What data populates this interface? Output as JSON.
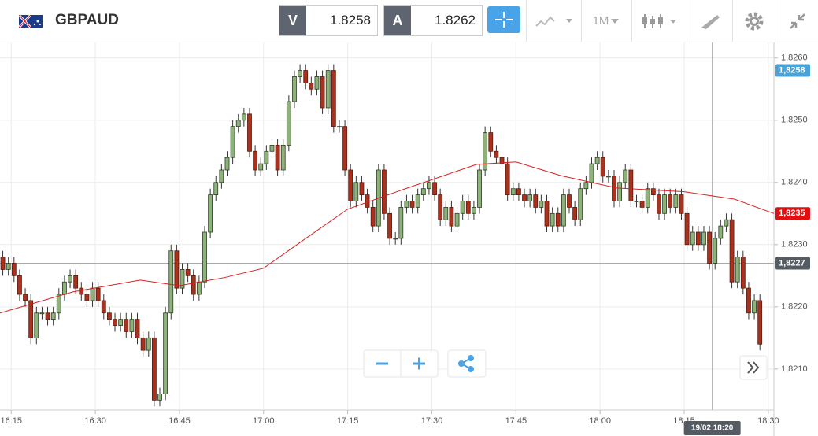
{
  "header": {
    "symbol": "GBPAUD",
    "bid": {
      "label": "V",
      "value": "1.8258"
    },
    "ask": {
      "label": "A",
      "value": "1.8262"
    },
    "timeframe": "1M"
  },
  "chart_data": {
    "type": "candlestick",
    "open": [
      1.8228,
      1.8226,
      1.8227,
      1.8225,
      1.8222,
      1.8221,
      1.8215,
      1.8219,
      1.8219,
      1.8218,
      1.8219,
      1.8222,
      1.8224,
      1.8225,
      1.8223,
      1.8222,
      1.8221,
      1.8223,
      1.8221,
      1.8219,
      1.8218,
      1.8217,
      1.8218,
      1.8216,
      1.8218,
      1.8215,
      1.8213,
      1.8215,
      1.8205,
      1.8206,
      1.8219,
      1.8229,
      1.8223,
      1.8226,
      1.8225,
      1.8222,
      1.8224,
      1.8232,
      1.8238,
      1.824,
      1.8242,
      1.8244,
      1.8249,
      1.825,
      1.8251,
      1.8245,
      1.8242,
      1.8243,
      1.8245,
      1.8246,
      1.8242,
      1.8246,
      1.8253,
      1.8257,
      1.8258,
      1.8256,
      1.8255,
      1.8257,
      1.8252,
      1.8258,
      1.8249,
      1.8249,
      1.8242,
      1.8237,
      1.824,
      1.8238,
      1.8236,
      1.8233,
      1.8242,
      1.8235,
      1.8231,
      1.8231,
      1.8236,
      1.8237,
      1.8236,
      1.8238,
      1.8239,
      1.824,
      1.8238,
      1.8234,
      1.8236,
      1.8233,
      1.8235,
      1.8237,
      1.8235,
      1.8236,
      1.8242,
      1.8248,
      1.8245,
      1.8244,
      1.8243,
      1.8238,
      1.8239,
      1.8238,
      1.8237,
      1.8238,
      1.8236,
      1.8237,
      1.8233,
      1.8235,
      1.8233,
      1.8238,
      1.8236,
      1.8234,
      1.8239,
      1.824,
      1.8243,
      1.8244,
      1.8241,
      1.8241,
      1.8237,
      1.824,
      1.8242,
      1.8237,
      1.8237,
      1.8236,
      1.8239,
      1.8238,
      1.8235,
      1.8238,
      1.8236,
      1.8238,
      1.8235,
      1.823,
      1.8232,
      1.823,
      1.8232,
      1.8227,
      1.8231,
      1.8233,
      1.8234,
      1.8224,
      1.8228,
      1.8223,
      1.8219,
      1.8221
    ],
    "high": [
      1.8229,
      1.8228,
      1.8228,
      1.8226,
      1.8223,
      1.8222,
      1.822,
      1.822,
      1.822,
      1.822,
      1.8223,
      1.8225,
      1.8226,
      1.8226,
      1.8224,
      1.8223,
      1.8224,
      1.8224,
      1.8222,
      1.822,
      1.8219,
      1.8219,
      1.8219,
      1.8219,
      1.8219,
      1.8216,
      1.8216,
      1.8216,
      1.8207,
      1.822,
      1.823,
      1.823,
      1.8227,
      1.8227,
      1.8226,
      1.8225,
      1.8233,
      1.8239,
      1.8241,
      1.8243,
      1.8245,
      1.825,
      1.8251,
      1.8252,
      1.8252,
      1.8246,
      1.8244,
      1.8246,
      1.8247,
      1.8247,
      1.8247,
      1.8254,
      1.8258,
      1.8259,
      1.8259,
      1.8257,
      1.8258,
      1.8258,
      1.8259,
      1.8259,
      1.825,
      1.825,
      1.8243,
      1.8241,
      1.8241,
      1.8239,
      1.8237,
      1.8243,
      1.8243,
      1.8236,
      1.8232,
      1.8237,
      1.8238,
      1.8238,
      1.8239,
      1.824,
      1.8241,
      1.8241,
      1.8239,
      1.8237,
      1.8237,
      1.8236,
      1.8238,
      1.8238,
      1.8237,
      1.8243,
      1.8249,
      1.8249,
      1.8246,
      1.8245,
      1.8244,
      1.824,
      1.824,
      1.8239,
      1.8239,
      1.8239,
      1.8238,
      1.8238,
      1.8236,
      1.8236,
      1.8239,
      1.8239,
      1.8237,
      1.824,
      1.8241,
      1.8244,
      1.8245,
      1.8245,
      1.8242,
      1.8242,
      1.8241,
      1.8243,
      1.8243,
      1.8238,
      1.8238,
      1.824,
      1.824,
      1.8239,
      1.8239,
      1.8239,
      1.8239,
      1.8239,
      1.8236,
      1.8233,
      1.8233,
      1.8233,
      1.8233,
      1.8232,
      1.8234,
      1.8235,
      1.8235,
      1.8229,
      1.8229,
      1.8224,
      1.8222,
      1.8222
    ],
    "low": [
      1.8225,
      1.8225,
      1.8224,
      1.8221,
      1.822,
      1.8214,
      1.8214,
      1.8218,
      1.8217,
      1.8217,
      1.8218,
      1.8221,
      1.8223,
      1.8222,
      1.8221,
      1.822,
      1.822,
      1.822,
      1.8218,
      1.8217,
      1.8216,
      1.8216,
      1.8215,
      1.8215,
      1.8214,
      1.8212,
      1.8212,
      1.8204,
      1.8204,
      1.8205,
      1.8218,
      1.8222,
      1.8222,
      1.8224,
      1.8221,
      1.8221,
      1.8223,
      1.8231,
      1.8237,
      1.8239,
      1.8241,
      1.8243,
      1.8248,
      1.8249,
      1.8244,
      1.8241,
      1.8241,
      1.8242,
      1.8244,
      1.8241,
      1.8241,
      1.8245,
      1.8252,
      1.8256,
      1.8255,
      1.8254,
      1.8254,
      1.8251,
      1.8251,
      1.8248,
      1.8248,
      1.8241,
      1.8236,
      1.8236,
      1.8237,
      1.8235,
      1.8232,
      1.8232,
      1.8234,
      1.823,
      1.823,
      1.823,
      1.8235,
      1.8235,
      1.8235,
      1.8237,
      1.8238,
      1.8237,
      1.8233,
      1.8233,
      1.8232,
      1.8232,
      1.8234,
      1.8234,
      1.8234,
      1.8235,
      1.8241,
      1.8244,
      1.8243,
      1.8242,
      1.8237,
      1.8237,
      1.8237,
      1.8236,
      1.8236,
      1.8235,
      1.8235,
      1.8232,
      1.8232,
      1.8232,
      1.8232,
      1.8235,
      1.8233,
      1.8233,
      1.8238,
      1.8239,
      1.8242,
      1.824,
      1.824,
      1.8236,
      1.8236,
      1.8239,
      1.8236,
      1.8236,
      1.8235,
      1.8235,
      1.8237,
      1.8234,
      1.8234,
      1.8235,
      1.8235,
      1.8234,
      1.8229,
      1.8229,
      1.8229,
      1.8229,
      1.8226,
      1.8226,
      1.823,
      1.8232,
      1.8223,
      1.8223,
      1.8222,
      1.8218,
      1.8218,
      1.8213
    ],
    "close": [
      1.8226,
      1.8227,
      1.8225,
      1.8222,
      1.8221,
      1.8215,
      1.8219,
      1.8219,
      1.8218,
      1.8219,
      1.8222,
      1.8224,
      1.8225,
      1.8223,
      1.8222,
      1.8221,
      1.8223,
      1.8221,
      1.8219,
      1.8218,
      1.8217,
      1.8218,
      1.8216,
      1.8218,
      1.8215,
      1.8213,
      1.8215,
      1.8205,
      1.8206,
      1.8219,
      1.8229,
      1.8223,
      1.8226,
      1.8225,
      1.8222,
      1.8224,
      1.8232,
      1.8238,
      1.824,
      1.8242,
      1.8244,
      1.8249,
      1.825,
      1.8251,
      1.8245,
      1.8242,
      1.8243,
      1.8245,
      1.8246,
      1.8242,
      1.8246,
      1.8253,
      1.8257,
      1.8258,
      1.8256,
      1.8255,
      1.8257,
      1.8252,
      1.8258,
      1.8249,
      1.8249,
      1.8242,
      1.8237,
      1.824,
      1.8238,
      1.8236,
      1.8233,
      1.8242,
      1.8235,
      1.8231,
      1.8231,
      1.8236,
      1.8237,
      1.8236,
      1.8238,
      1.8239,
      1.824,
      1.8238,
      1.8234,
      1.8236,
      1.8233,
      1.8235,
      1.8237,
      1.8235,
      1.8236,
      1.8242,
      1.8248,
      1.8245,
      1.8244,
      1.8243,
      1.8238,
      1.8239,
      1.8238,
      1.8237,
      1.8238,
      1.8236,
      1.8237,
      1.8233,
      1.8235,
      1.8233,
      1.8238,
      1.8236,
      1.8234,
      1.8239,
      1.824,
      1.8243,
      1.8244,
      1.8241,
      1.8241,
      1.8237,
      1.824,
      1.8242,
      1.8237,
      1.8237,
      1.8236,
      1.8239,
      1.8238,
      1.8235,
      1.8238,
      1.8236,
      1.8238,
      1.8235,
      1.823,
      1.8232,
      1.823,
      1.8232,
      1.8227,
      1.8231,
      1.8233,
      1.8234,
      1.8224,
      1.8228,
      1.8223,
      1.8219,
      1.8221,
      1.8214
    ],
    "up_color": "#8db27a",
    "down_color": "#a8321e",
    "moving_average": {
      "color": "#d62020",
      "x": [
        0,
        13,
        25,
        32,
        40,
        47,
        55,
        62,
        72,
        85,
        92,
        100,
        110,
        122,
        131,
        138
      ],
      "values": [
        1.8219,
        1.82224,
        1.82243,
        1.82234,
        1.82247,
        1.82262,
        1.82313,
        1.82357,
        1.82389,
        1.82429,
        1.82433,
        1.82411,
        1.82391,
        1.82385,
        1.82373,
        1.8235
      ]
    },
    "xlim": [
      0,
      138
    ],
    "xticks": [
      {
        "value": 2,
        "label": "16:15"
      },
      {
        "value": 17,
        "label": "16:30"
      },
      {
        "value": 32,
        "label": "16:45"
      },
      {
        "value": 47,
        "label": "17:00"
      },
      {
        "value": 62,
        "label": "17:15"
      },
      {
        "value": 77,
        "label": "17:30"
      },
      {
        "value": 92,
        "label": "17:45"
      },
      {
        "value": 107,
        "label": "18:00"
      },
      {
        "value": 122,
        "label": "18:15"
      },
      {
        "value": 137,
        "label": "18:30"
      }
    ],
    "ylim": [
      1.82034,
      1.82625
    ],
    "yticks": [
      {
        "value": 1.821,
        "label": "1,8210"
      },
      {
        "value": 1.822,
        "label": "1,8220"
      },
      {
        "value": 1.823,
        "label": "1,8230"
      },
      {
        "value": 1.824,
        "label": "1,8240"
      },
      {
        "value": 1.825,
        "label": "1,8250"
      },
      {
        "value": 1.826,
        "label": "1,8260"
      }
    ],
    "grid": true,
    "price_markers": [
      {
        "value": 1.8258,
        "label": "1,8258",
        "color": "#4aa3d8"
      },
      {
        "value": 1.8235,
        "label": "1,8235",
        "color": "#e01010"
      },
      {
        "value": 1.8227,
        "label": "1,8227",
        "color": "#555b63"
      }
    ],
    "crosshair": {
      "x": 127,
      "y": 1.8227,
      "label": "19/02 18:20"
    }
  }
}
